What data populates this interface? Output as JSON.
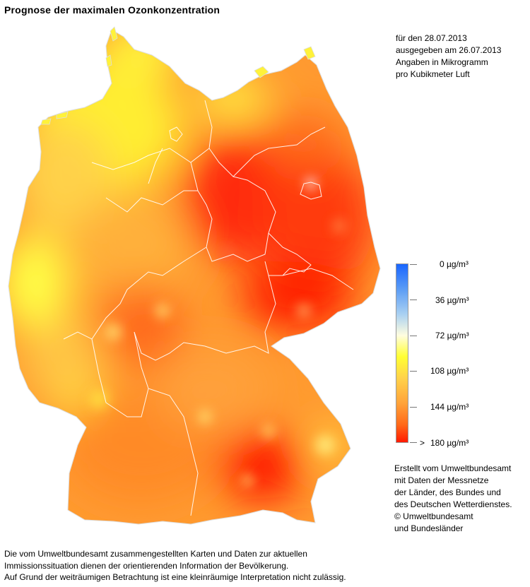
{
  "title": "Prognose der maximalen Ozonkonzentration",
  "info": [
    "für den 28.07.2013",
    "ausgegeben am 26.07.2013",
    "Angaben in Mikrogramm",
    "pro Kubikmeter Luft"
  ],
  "legend": {
    "gradient_colors": [
      "#1a66ff",
      "#a9d0f2",
      "#ffff33",
      "#ffa33a",
      "#ff1a00"
    ],
    "labels": [
      "0 µg/m³",
      "36 µg/m³",
      "72 µg/m³",
      "108 µg/m³",
      "144 µg/m³"
    ],
    "max_prefix": ">",
    "max_label": "180 µg/m³"
  },
  "credits": [
    "Erstellt vom Umweltbundesamt",
    "mit Daten der Messnetze",
    "der Länder, des Bundes und",
    "des Deutschen Wetterdienstes.",
    "© Umweltbundesamt",
    "und Bundesländer"
  ],
  "disclaimer": [
    "Die vom Umweltbundesamt zusammengestellten Karten und Daten zur aktuellen",
    "Immissionssituation dienen der orientierenden Information der Bevölkerung.",
    "Auf Grund der weiträumigen Betrachtung ist eine kleinräumige Interpretation nicht zulässig."
  ],
  "map": {
    "region": "Deutschland",
    "colors": {
      "low": "#ffff33",
      "mid": "#ffa33a",
      "high": "#ff1a00",
      "border": "#ffffff"
    }
  }
}
